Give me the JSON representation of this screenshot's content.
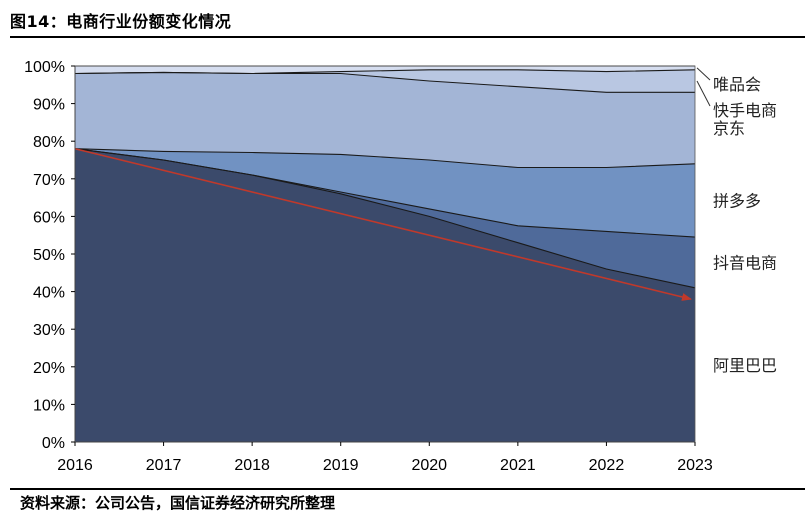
{
  "header": {
    "title": "图14：电商行业份额变化情况"
  },
  "footer": {
    "source": "资料来源：公司公告，国信证券经济研究所整理"
  },
  "chart_data": {
    "type": "area",
    "stacked": true,
    "x": [
      "2016",
      "2017",
      "2018",
      "2019",
      "2020",
      "2021",
      "2022",
      "2023"
    ],
    "ylim": [
      0,
      100
    ],
    "yticks": [
      "0%",
      "10%",
      "20%",
      "30%",
      "40%",
      "50%",
      "60%",
      "70%",
      "80%",
      "90%",
      "100%"
    ],
    "series": [
      {
        "name": "阿里巴巴",
        "values": [
          78,
          75,
          71,
          66,
          60,
          53,
          46,
          41
        ],
        "color": "#3b4a6b"
      },
      {
        "name": "抖音电商",
        "values": [
          0,
          0,
          0,
          0.5,
          2,
          4.5,
          10,
          13.5
        ],
        "color": "#4f6a9a"
      },
      {
        "name": "拼多多",
        "values": [
          0,
          2.3,
          6,
          10,
          13,
          15.5,
          17,
          19.5
        ],
        "color": "#7192c2"
      },
      {
        "name": "京东",
        "values": [
          20,
          21,
          21,
          21.5,
          21,
          21.5,
          20,
          19
        ],
        "color": "#a3b5d6"
      },
      {
        "name": "快手电商",
        "values": [
          0,
          0,
          0,
          0.5,
          3,
          4.5,
          5.5,
          6
        ],
        "color": "#b9c7e2"
      },
      {
        "name": "唯品会",
        "values": [
          2,
          1.7,
          2,
          1.5,
          1,
          1,
          1.5,
          1
        ],
        "color": "#d5ddef"
      }
    ],
    "trend_arrow": {
      "from": [
        "2016",
        78
      ],
      "to": [
        "2023",
        38
      ],
      "color": "#c0392b"
    }
  }
}
